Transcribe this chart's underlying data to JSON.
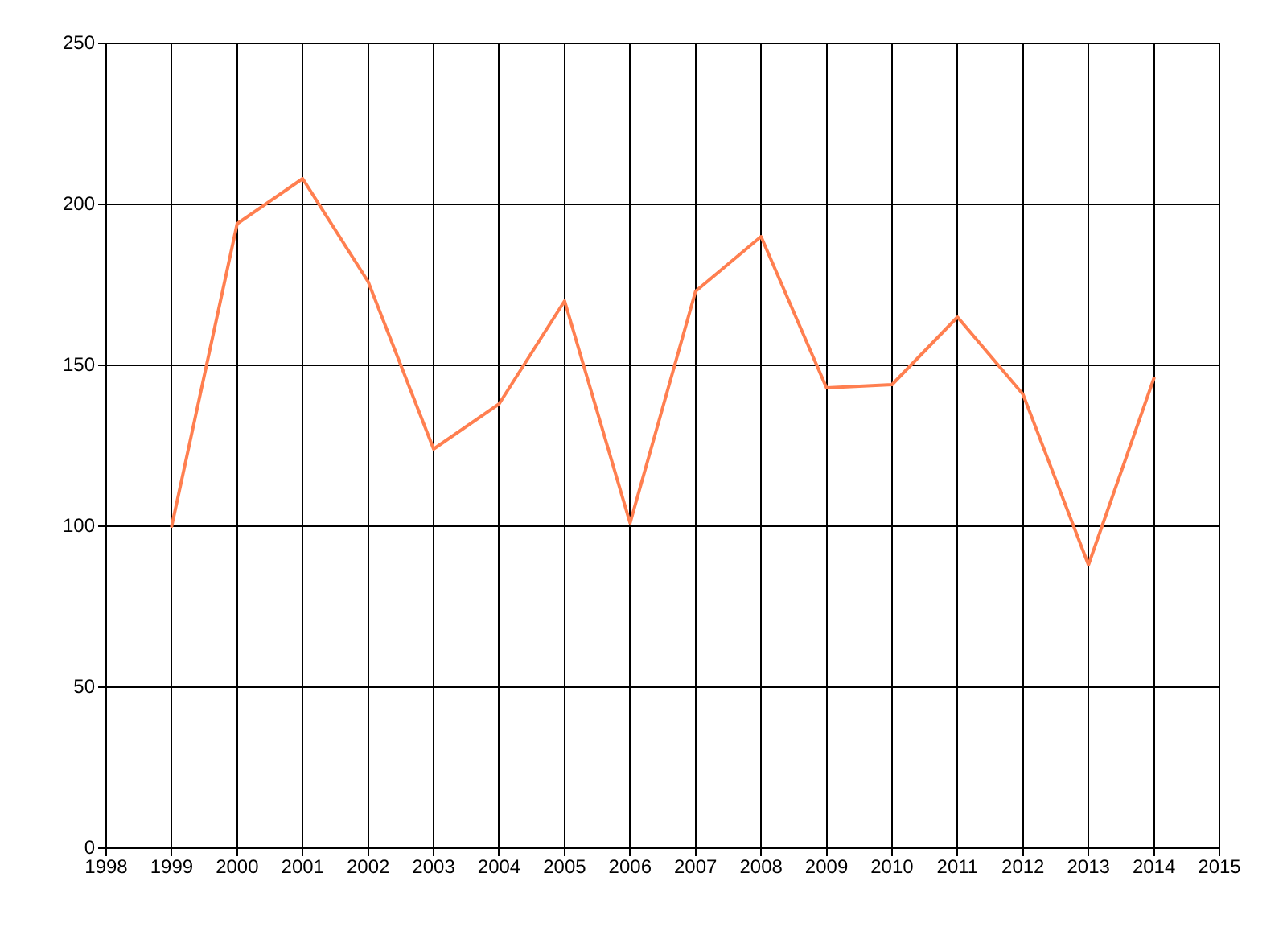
{
  "chart_data": {
    "type": "line",
    "x": [
      1999,
      2000,
      2001,
      2002,
      2003,
      2004,
      2005,
      2006,
      2007,
      2008,
      2009,
      2010,
      2011,
      2012,
      2013,
      2014
    ],
    "values": [
      100,
      194,
      208,
      176,
      124,
      138,
      170,
      101,
      173,
      190,
      143,
      144,
      165,
      141,
      88,
      146
    ],
    "color": "#ff7f50",
    "xlim": [
      1998,
      2015
    ],
    "xticks": [
      1998,
      1999,
      2000,
      2001,
      2002,
      2003,
      2004,
      2005,
      2006,
      2007,
      2008,
      2009,
      2010,
      2011,
      2012,
      2013,
      2014,
      2015
    ],
    "ylim": [
      0,
      250
    ],
    "yticks": [
      0,
      50,
      100,
      150,
      200,
      250
    ],
    "grid": true
  }
}
